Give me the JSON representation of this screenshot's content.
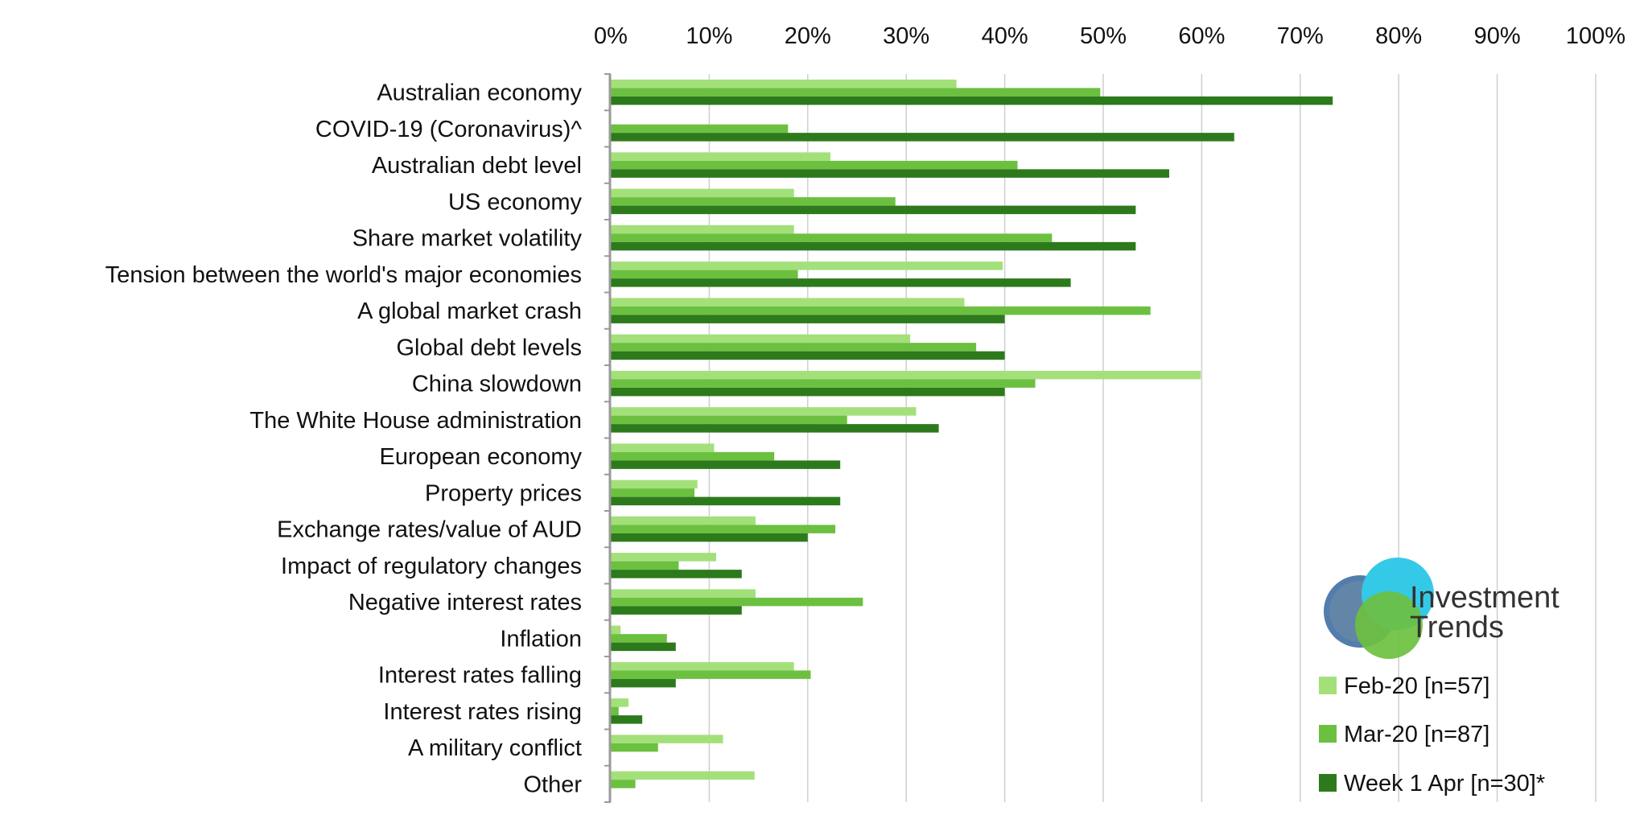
{
  "chart_data": {
    "type": "bar",
    "orientation": "horizontal",
    "categories": [
      "Australian economy",
      "COVID-19 (Coronavirus)^",
      "Australian debt level",
      "US economy",
      "Share market volatility",
      "Tension between the world's major economies",
      "A global market crash",
      "Global debt levels",
      "China slowdown",
      "The White House administration",
      "European economy",
      "Property prices",
      "Exchange rates/value of AUD",
      "Impact of regulatory changes",
      "Negative interest rates",
      "Inflation",
      "Interest rates falling",
      "Interest rates rising",
      "A military conflict",
      "Other"
    ],
    "series": [
      {
        "name": "Feb-20 [n=57]",
        "color": "#a3e07a",
        "values": [
          35.1,
          null,
          22.3,
          18.6,
          18.6,
          39.8,
          35.9,
          30.4,
          59.9,
          31.0,
          10.5,
          8.8,
          14.7,
          10.7,
          14.7,
          1.0,
          18.6,
          1.8,
          11.4,
          14.6
        ]
      },
      {
        "name": "Mar-20 [n=87]",
        "color": "#6cc040",
        "values": [
          49.7,
          18.0,
          41.3,
          28.9,
          44.8,
          19.0,
          54.8,
          37.1,
          43.1,
          24.0,
          16.6,
          8.5,
          22.8,
          6.9,
          25.6,
          5.7,
          20.3,
          0.8,
          4.8,
          2.5
        ]
      },
      {
        "name": "Week 1 Apr [n=30]*",
        "color": "#2d7a1c",
        "values": [
          73.3,
          63.3,
          56.7,
          53.3,
          53.3,
          46.7,
          40.0,
          40.0,
          40.0,
          33.3,
          23.3,
          23.3,
          20.0,
          13.3,
          13.3,
          6.6,
          6.6,
          3.2,
          null,
          null
        ]
      }
    ],
    "x_ticks": [
      "0%",
      "10%",
      "20%",
      "30%",
      "40%",
      "50%",
      "60%",
      "70%",
      "80%",
      "90%",
      "100%"
    ],
    "xlim": [
      0,
      100
    ],
    "grid": true,
    "legend_position": "bottom-right"
  },
  "brand": {
    "line1": "Investment",
    "line2": "Trends"
  }
}
